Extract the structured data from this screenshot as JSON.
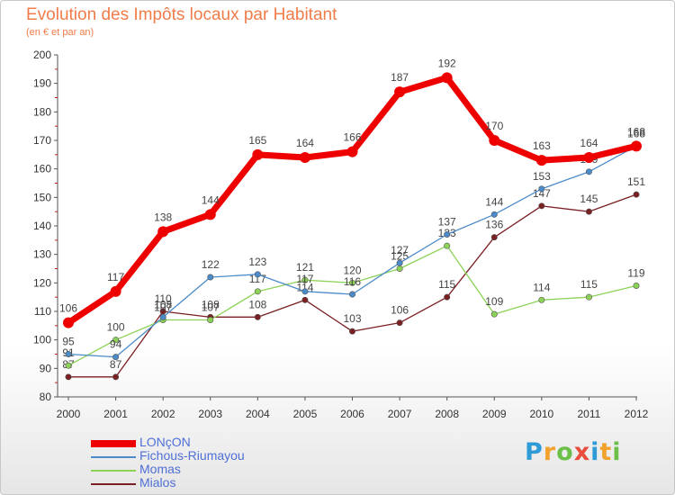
{
  "title": "Evolution des Impôts locaux par Habitant",
  "subtitle": "(en € et par an)",
  "logo": {
    "letters": [
      {
        "ch": "P",
        "color": "#2e9bd6"
      },
      {
        "ch": "r",
        "color": "#f2a22e"
      },
      {
        "ch": "o",
        "color": "#6cc04a"
      },
      {
        "ch": "x",
        "color": "#e84d3c"
      },
      {
        "ch": "i",
        "color": "#2e9bd6"
      },
      {
        "ch": "t",
        "color": "#f2a22e"
      },
      {
        "ch": "i",
        "color": "#6cc04a"
      }
    ]
  },
  "chart_data": {
    "type": "line",
    "title": "Evolution des Impôts locaux par Habitant",
    "subtitle": "(en € et par an)",
    "xlabel": "",
    "ylabel": "",
    "x": [
      "2000",
      "2001",
      "2002",
      "2003",
      "2004",
      "2005",
      "2006",
      "2007",
      "2008",
      "2009",
      "2010",
      "2011",
      "2012"
    ],
    "ylim": [
      80,
      200
    ],
    "yticks": [
      80,
      90,
      100,
      110,
      120,
      130,
      140,
      150,
      160,
      170,
      180,
      190,
      200
    ],
    "grid": false,
    "legend_position": "bottom-left",
    "series": [
      {
        "name": "LONçON",
        "color": "#ee0000",
        "values": [
          106,
          117,
          138,
          144,
          165,
          164,
          166,
          187,
          192,
          170,
          163,
          164,
          168
        ],
        "labels": [
          "106",
          "117",
          "138",
          "144",
          "165",
          "164",
          "166",
          "187",
          "192",
          "170",
          "163",
          "164",
          "168"
        ]
      },
      {
        "name": "Fichous-Riumayou",
        "color": "#4c8bc9",
        "values": [
          95,
          94,
          108,
          122,
          123,
          117,
          116,
          127,
          137,
          144,
          153,
          159,
          168
        ],
        "labels": [
          "95",
          "94",
          "108",
          "122",
          "123",
          "117",
          "116",
          "127",
          "137",
          "144",
          "153",
          "159",
          "168"
        ]
      },
      {
        "name": "Momas",
        "color": "#8cd257",
        "values": [
          91,
          100,
          107,
          107,
          117,
          121,
          120,
          125,
          133,
          109,
          114,
          115,
          119
        ],
        "labels": [
          "91",
          "100",
          "107",
          "107",
          "117",
          "121",
          "120",
          "125",
          "133",
          "109",
          "114",
          "115",
          "119"
        ]
      },
      {
        "name": "Mialos",
        "color": "#7a1f22",
        "values": [
          87,
          87,
          110,
          108,
          108,
          114,
          103,
          106,
          115,
          136,
          147,
          145,
          151
        ],
        "labels": [
          "87",
          "87",
          "110",
          "108",
          "108",
          "114",
          "103",
          "106",
          "115",
          "136",
          "147",
          "145",
          "151"
        ]
      }
    ]
  }
}
